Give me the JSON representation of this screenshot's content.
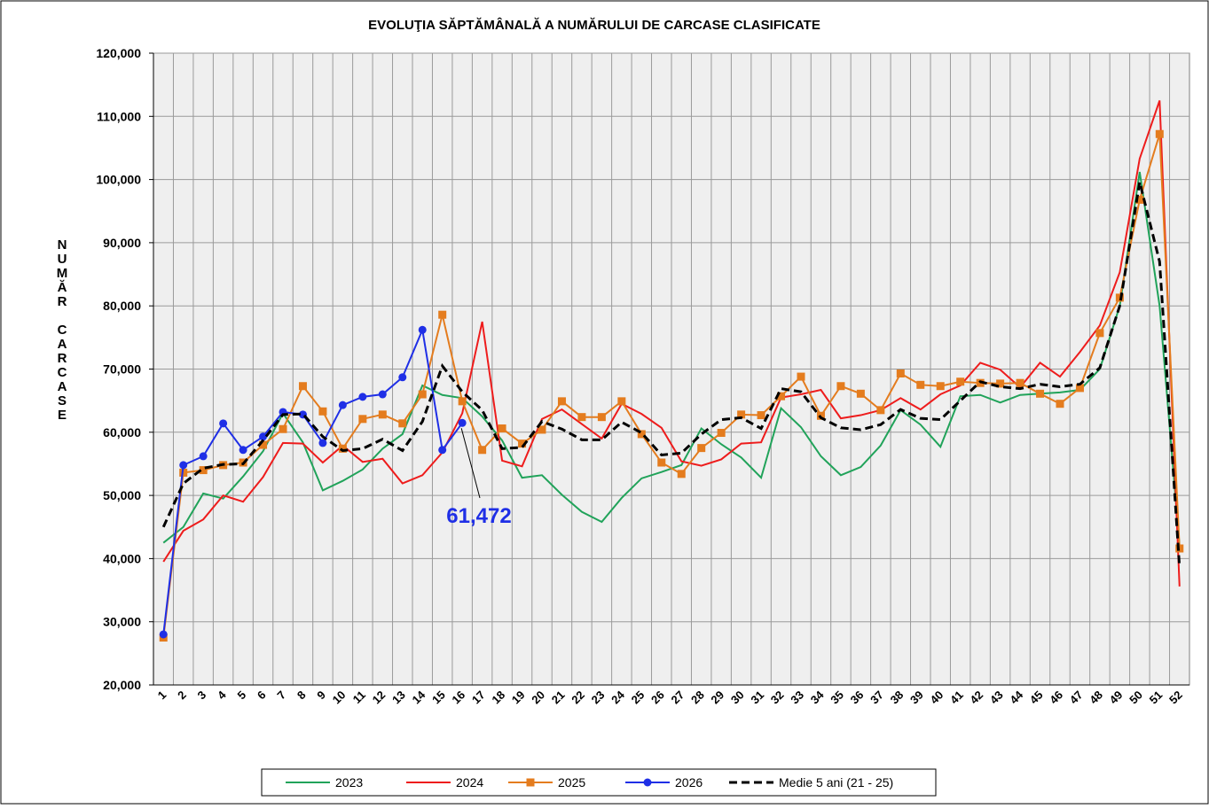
{
  "chart_data": {
    "type": "line",
    "title": "EVOLUŢIA  SĂPTĂMÂNALĂ  A NUMĂRULUI DE CARCASE   CLASIFICATE",
    "y_label": "NUMĂR CARCASE",
    "annotation": "61,472",
    "categories": [
      "1",
      "2",
      "3",
      "4",
      "5",
      "6",
      "7",
      "8",
      "9",
      "10",
      "11",
      "12",
      "13",
      "14",
      "15",
      "16",
      "17",
      "18",
      "19",
      "20",
      "21",
      "22",
      "23",
      "24",
      "25",
      "26",
      "27",
      "28",
      "29",
      "30",
      "31",
      "32",
      "33",
      "34",
      "35",
      "36",
      "37",
      "38",
      "39",
      "40",
      "41",
      "42",
      "43",
      "44",
      "45",
      "46",
      "47",
      "48",
      "49",
      "50",
      "51",
      "52"
    ],
    "ylim": [
      20000,
      120000
    ],
    "yticks": [
      {
        "value": 20000,
        "label": "20,000"
      },
      {
        "value": 30000,
        "label": "30,000"
      },
      {
        "value": 40000,
        "label": "40,000"
      },
      {
        "value": 50000,
        "label": "50,000"
      },
      {
        "value": 60000,
        "label": "60,000"
      },
      {
        "value": 70000,
        "label": "70,000"
      },
      {
        "value": 80000,
        "label": "80,000"
      },
      {
        "value": 90000,
        "label": "90,000"
      },
      {
        "value": 100000,
        "label": "100,000"
      },
      {
        "value": 110000,
        "label": "110,000"
      },
      {
        "value": 120000,
        "label": "120,000"
      }
    ],
    "grid": true,
    "series": [
      {
        "name": "2023",
        "color": "#21a35a",
        "marker": "none",
        "dash": false,
        "values": [
          42500,
          45000,
          50300,
          49500,
          53000,
          57000,
          63000,
          58400,
          50800,
          52300,
          54100,
          57400,
          59700,
          67400,
          65900,
          65400,
          62500,
          58700,
          52800,
          53200,
          50100,
          47400,
          45800,
          49600,
          52700,
          53700,
          54800,
          60600,
          58100,
          56000,
          52800,
          63800,
          60800,
          56200,
          53200,
          54500,
          57900,
          63500,
          61200,
          57700,
          65700,
          65900,
          64700,
          65900,
          66100,
          66300,
          66700,
          70000,
          80000,
          101200,
          80000,
          42000
        ]
      },
      {
        "name": "2024",
        "color": "#ee1c1c",
        "marker": "none",
        "dash": false,
        "values": [
          39500,
          44400,
          46200,
          50000,
          49000,
          52900,
          58300,
          58200,
          55200,
          57900,
          55300,
          55800,
          51900,
          53200,
          56800,
          63000,
          77500,
          55500,
          54600,
          62100,
          63600,
          61300,
          59000,
          64500,
          62900,
          60700,
          55400,
          54700,
          55700,
          58200,
          58400,
          65500,
          66000,
          66700,
          62200,
          62700,
          63500,
          65400,
          63600,
          66000,
          67400,
          71000,
          69900,
          67100,
          71000,
          68800,
          72700,
          76900,
          85300,
          103300,
          112500,
          35600
        ]
      },
      {
        "name": "2025",
        "color": "#e47c1e",
        "marker": "square",
        "dash": false,
        "values": [
          27500,
          53600,
          54000,
          54800,
          55200,
          58000,
          60500,
          67300,
          63300,
          57400,
          62100,
          62800,
          61400,
          66000,
          78600,
          64900,
          57200,
          60600,
          58200,
          60400,
          64900,
          62400,
          62400,
          64900,
          59700,
          55200,
          53400,
          57500,
          59900,
          62800,
          62700,
          65700,
          68800,
          62600,
          67300,
          66100,
          63500,
          69300,
          67500,
          67300,
          68000,
          67800,
          67700,
          67800,
          66100,
          64500,
          67000,
          75700,
          81300,
          96800,
          107200,
          41600
        ]
      },
      {
        "name": "2026",
        "color": "#1f2fe6",
        "marker": "circle",
        "dash": false,
        "values": [
          28000,
          54800,
          56200,
          61400,
          57200,
          59300,
          63200,
          62800,
          58300,
          64300,
          65600,
          66000,
          68700,
          76200,
          57200,
          61472,
          null,
          null,
          null,
          null,
          null,
          null,
          null,
          null,
          null,
          null,
          null,
          null,
          null,
          null,
          null,
          null,
          null,
          null,
          null,
          null,
          null,
          null,
          null,
          null,
          null,
          null,
          null,
          null,
          null,
          null,
          null,
          null,
          null,
          null,
          null,
          null
        ]
      },
      {
        "name": "Medie 5 ani (21 - 25)",
        "color": "#000000",
        "marker": "none",
        "dash": true,
        "values": [
          45000,
          51900,
          54300,
          54900,
          55000,
          58700,
          62800,
          62900,
          59300,
          57100,
          57400,
          58900,
          57100,
          61700,
          70500,
          66400,
          63500,
          57400,
          57600,
          61700,
          60500,
          58800,
          58800,
          61600,
          59900,
          56400,
          56700,
          59700,
          62000,
          62300,
          60600,
          66900,
          66400,
          62300,
          60700,
          60400,
          61200,
          63600,
          62200,
          62000,
          65000,
          68000,
          67200,
          66900,
          67600,
          67200,
          67600,
          70200,
          80000,
          99600,
          87000,
          38600
        ]
      }
    ]
  }
}
